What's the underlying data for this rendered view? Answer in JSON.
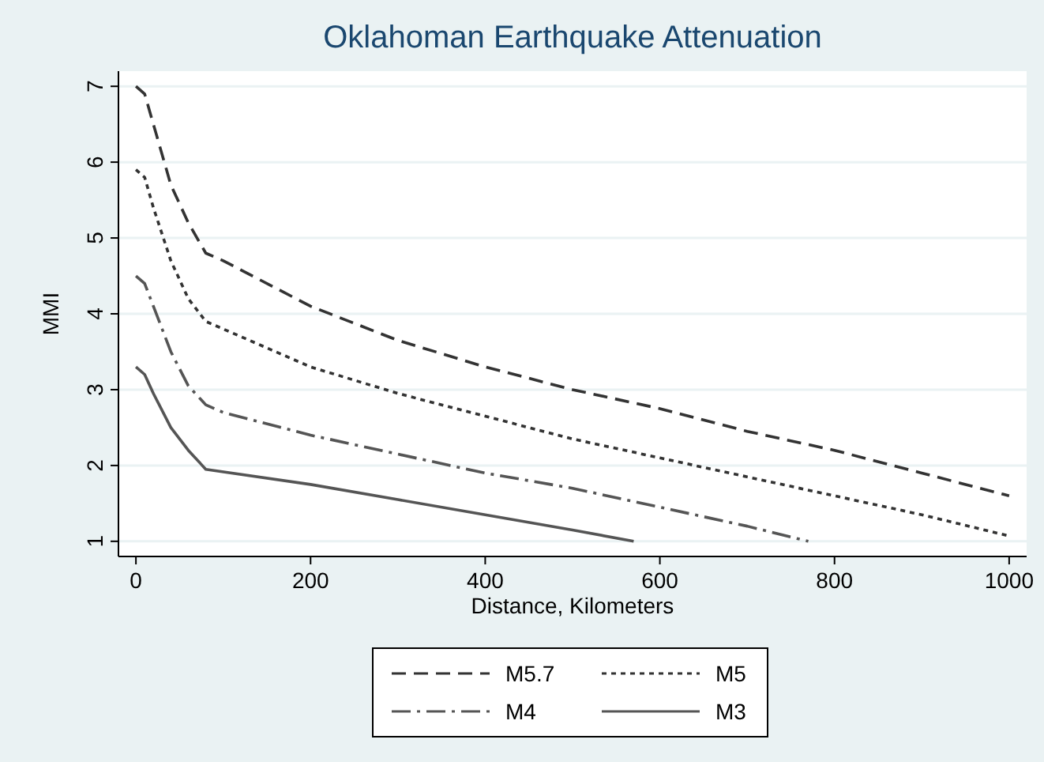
{
  "chart_data": {
    "type": "line",
    "title": "Oklahoman Earthquake Attenuation",
    "xlabel": "Distance, Kilometers",
    "ylabel": "MMI",
    "xlim": [
      -20,
      1020
    ],
    "xticks": [
      0,
      200,
      400,
      600,
      800,
      1000
    ],
    "ylim": [
      0.8,
      7.2
    ],
    "yticks": [
      1,
      2,
      3,
      4,
      5,
      6,
      7
    ],
    "grid": "y",
    "legend": "bottom",
    "series": [
      {
        "name": "M5.7",
        "color": "#333333",
        "line_style": "dashed",
        "x": [
          0,
          10,
          20,
          40,
          60,
          80,
          100,
          200,
          300,
          400,
          500,
          600,
          700,
          800,
          900,
          1000
        ],
        "values": [
          7.0,
          6.9,
          6.5,
          5.7,
          5.2,
          4.8,
          4.7,
          4.1,
          3.65,
          3.3,
          3.0,
          2.75,
          2.45,
          2.2,
          1.9,
          1.6
        ]
      },
      {
        "name": "M5",
        "color": "#333333",
        "line_style": "dotted",
        "x": [
          0,
          10,
          20,
          40,
          60,
          80,
          100,
          200,
          300,
          400,
          500,
          600,
          700,
          800,
          900,
          1000
        ],
        "values": [
          5.9,
          5.8,
          5.4,
          4.7,
          4.2,
          3.9,
          3.8,
          3.3,
          2.95,
          2.65,
          2.35,
          2.1,
          1.85,
          1.6,
          1.35,
          1.07
        ]
      },
      {
        "name": "M4",
        "color": "#555555",
        "line_style": "dashdot",
        "x": [
          0,
          10,
          20,
          40,
          60,
          80,
          100,
          200,
          300,
          400,
          500,
          600,
          700,
          770
        ],
        "values": [
          4.5,
          4.4,
          4.1,
          3.5,
          3.05,
          2.8,
          2.7,
          2.4,
          2.15,
          1.9,
          1.7,
          1.45,
          1.2,
          1.0
        ]
      },
      {
        "name": "M3",
        "color": "#555555",
        "line_style": "solid",
        "x": [
          0,
          10,
          20,
          40,
          60,
          80,
          200,
          300,
          400,
          500,
          570
        ],
        "values": [
          3.3,
          3.2,
          2.95,
          2.5,
          2.2,
          1.95,
          1.75,
          1.55,
          1.35,
          1.15,
          1.0
        ]
      }
    ]
  }
}
